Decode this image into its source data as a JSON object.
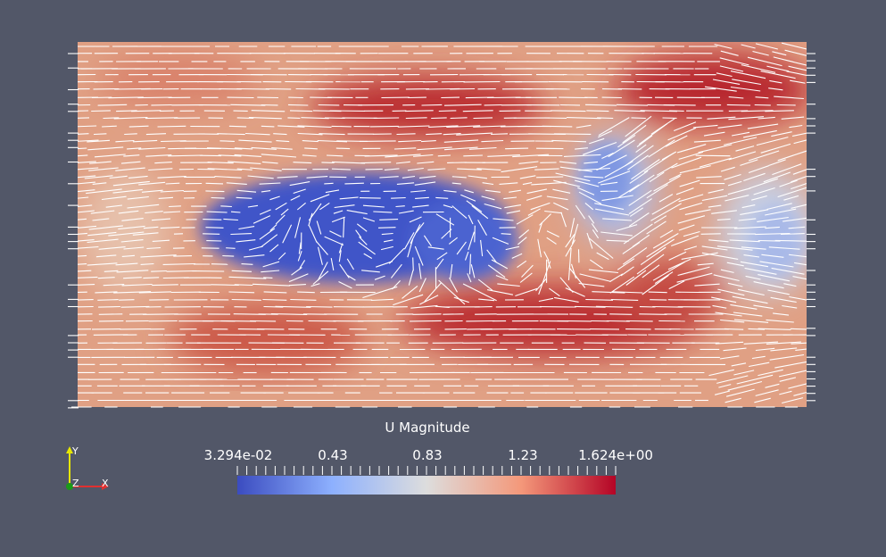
{
  "colorbar": {
    "title": "U Magnitude",
    "labels": [
      "3.294e-02",
      "0.43",
      "0.83",
      "1.23",
      "1.624e+00"
    ],
    "min": 0.03294,
    "max": 1.624,
    "colors": [
      "#3b4cc0",
      "#8db0fe",
      "#dddddd",
      "#f4987a",
      "#b40426"
    ]
  },
  "orientation_axes": {
    "x_label": "X",
    "y_label": "Y",
    "z_label": "Z",
    "x_color": "#e03030",
    "y_color": "#e6e600",
    "z_color": "#1a9a1a"
  },
  "render": {
    "background": "#525768",
    "glyph_color": "#ffffff"
  }
}
